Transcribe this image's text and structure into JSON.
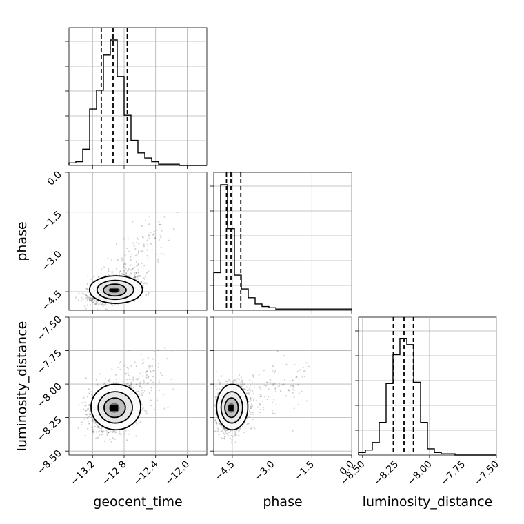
{
  "chart_data": {
    "type": "corner",
    "parameters": [
      "geocent_time",
      "phase",
      "luminosity_distance"
    ],
    "axis_labels": {
      "geocent_time": "geocent_time",
      "phase": "phase",
      "luminosity_distance": "luminosity_distance"
    },
    "ranges": {
      "geocent_time": [
        -13.5,
        -11.75
      ],
      "phase": [
        -5.2,
        0.0
      ],
      "luminosity_distance": [
        -8.53,
        -7.5
      ]
    },
    "ticks": {
      "geocent_time": [
        -13.2,
        -12.8,
        -12.4,
        -12.0
      ],
      "phase": [
        -4.5,
        -3.0,
        -1.5,
        0.0
      ],
      "luminosity_distance": [
        -8.5,
        -8.25,
        -8.0,
        -7.75,
        -7.5
      ]
    },
    "tick_labels": {
      "geocent_time": [
        "−13.2",
        "−12.8",
        "−12.4",
        "−12.0"
      ],
      "phase": [
        "−4.5",
        "−3.0",
        "−1.5",
        "0.0"
      ],
      "luminosity_distance": [
        "−8.50",
        "−8.25",
        "−8.00",
        "−7.75",
        "−7.50"
      ]
    },
    "quantiles": {
      "geocent_time": [
        -13.09,
        -12.94,
        -12.76
      ],
      "phase": [
        -4.72,
        -4.55,
        -4.18
      ],
      "luminosity_distance": [
        -8.27,
        -8.19,
        -8.12
      ]
    },
    "histograms": {
      "geocent_time": {
        "bin_start": -13.5,
        "bin_width": 0.0875,
        "counts": [
          0.02,
          0.03,
          0.13,
          0.45,
          0.6,
          0.88,
          1.0,
          0.71,
          0.4,
          0.2,
          0.1,
          0.06,
          0.03,
          0.01,
          0.01,
          0.01,
          0,
          0,
          0,
          0
        ]
      },
      "phase": {
        "bin_start": -5.2,
        "bin_width": 0.26,
        "counts": [
          0.3,
          1.0,
          0.65,
          0.28,
          0.17,
          0.1,
          0.05,
          0.03,
          0.02,
          0.01,
          0.01,
          0.01,
          0.01,
          0.01,
          0.01,
          0.01,
          0.01,
          0.01,
          0.01,
          0.01
        ]
      },
      "luminosity_distance": {
        "bin_start": -8.53,
        "bin_width": 0.0515,
        "counts": [
          0.02,
          0.04,
          0.1,
          0.26,
          0.57,
          0.8,
          0.93,
          0.88,
          0.58,
          0.26,
          0.05,
          0.02,
          0.01,
          0.01,
          0,
          0,
          0,
          0,
          0,
          0
        ]
      }
    },
    "scatter_seed": 7,
    "grid": true
  }
}
